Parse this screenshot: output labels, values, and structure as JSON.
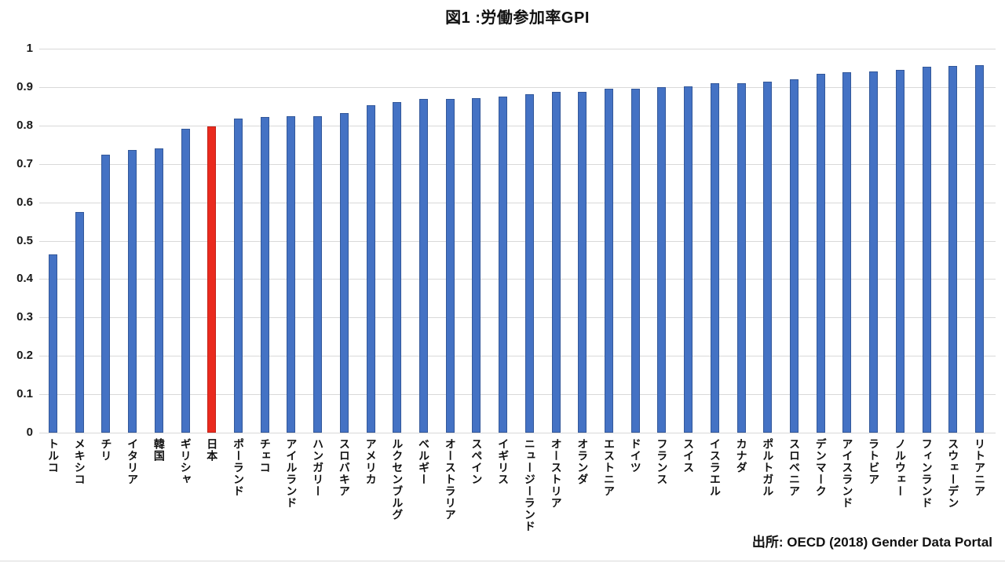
{
  "chart": {
    "title": "図1 :労働参加率GPI",
    "source": "出所: OECD (2018) Gender Data Portal"
  },
  "chart_data": {
    "type": "bar",
    "title": "図1 :労働参加率GPI",
    "source": "出所: OECD (2018) Gender Data Portal",
    "categories": [
      "トルコ",
      "メキシコ",
      "チリ",
      "イタリア",
      "韓国",
      "ギリシャ",
      "日本",
      "ポーランド",
      "チェコ",
      "アイルランド",
      "ハンガリー",
      "スロバキア",
      "アメリカ",
      "ルクセンブルグ",
      "ベルギー",
      "オーストラリア",
      "スペイン",
      "イギリス",
      "ニュージーランド",
      "オーストリア",
      "オランダ",
      "エストニア",
      "ドイツ",
      "フランス",
      "スイス",
      "イスラエル",
      "カナダ",
      "ポルトガル",
      "スロベニア",
      "デンマーク",
      "アイスランド",
      "ラトビア",
      "ノルウェー",
      "フィンランド",
      "スウェーデン",
      "リトアニア"
    ],
    "values": [
      0.465,
      0.575,
      0.724,
      0.737,
      0.74,
      0.791,
      0.798,
      0.817,
      0.822,
      0.825,
      0.825,
      0.832,
      0.853,
      0.861,
      0.869,
      0.869,
      0.871,
      0.876,
      0.882,
      0.888,
      0.888,
      0.895,
      0.896,
      0.899,
      0.901,
      0.909,
      0.909,
      0.914,
      0.921,
      0.934,
      0.939,
      0.94,
      0.945,
      0.952,
      0.955,
      0.957
    ],
    "highlight_category": "日本",
    "bar_color": "#4472c4",
    "highlight_color": "#ea2a1e",
    "gridline_color": "#d9d9d9",
    "xlabel": "",
    "ylabel": "",
    "ylim": [
      0,
      1
    ],
    "yticks": [
      0,
      0.1,
      0.2,
      0.3,
      0.4,
      0.5,
      0.6,
      0.7,
      0.8,
      0.9,
      1
    ],
    "ytick_labels": [
      "0",
      "0.1",
      "0.2",
      "0.3",
      "0.4",
      "0.5",
      "0.6",
      "0.7",
      "0.8",
      "0.9",
      "1"
    ],
    "grid": true,
    "legend": false,
    "bar_orientation": "vertical",
    "x_label_orientation": "vertical-japanese"
  }
}
